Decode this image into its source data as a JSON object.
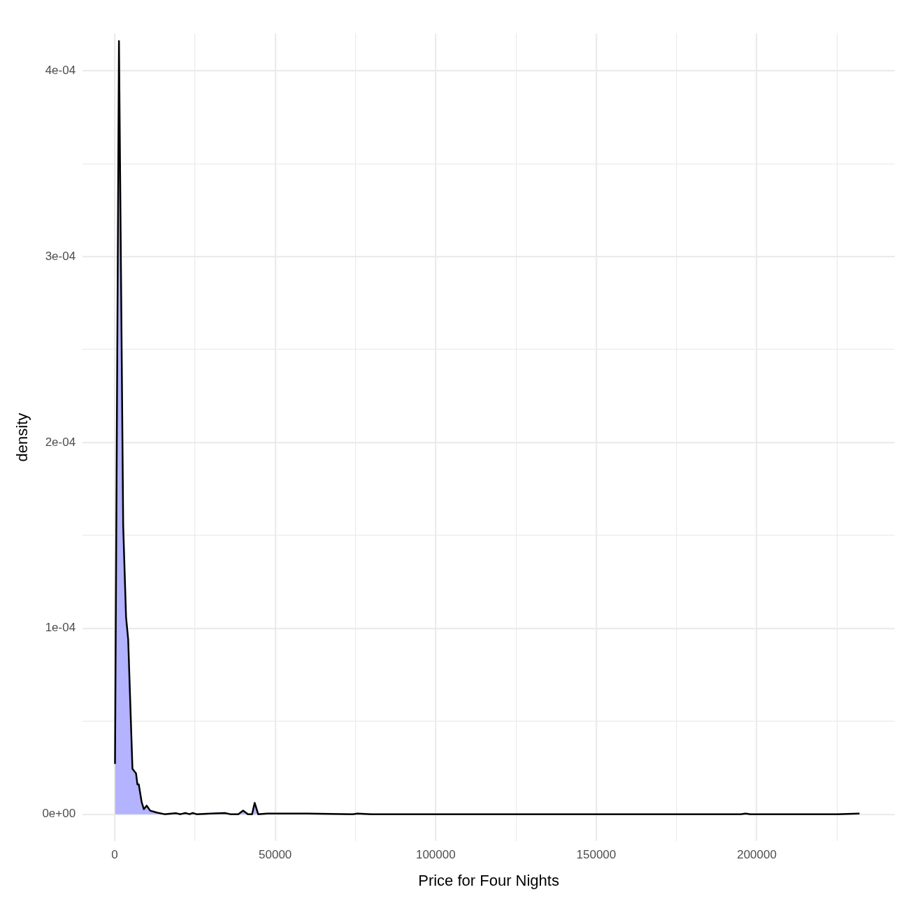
{
  "chart_data": {
    "type": "area",
    "xlabel": "Price for Four Nights",
    "ylabel": "density",
    "x": [
      100,
      1330,
      2650,
      3540,
      4200,
      5530,
      6640,
      7080,
      7500,
      8400,
      9070,
      9960,
      11060,
      13270,
      15500,
      19000,
      20500,
      22000,
      23300,
      24300,
      25500,
      30000,
      34300,
      36000,
      38500,
      40000,
      41500,
      42800,
      43600,
      44700,
      47500,
      50000,
      60000,
      74100,
      75500,
      79900,
      82000,
      120000,
      180000,
      195000,
      196500,
      198000,
      225000,
      232000
    ],
    "series": [
      {
        "color": "#b3b3ff",
        "values": [
          2.7e-05,
          0.000416,
          0.000155,
          0.000106,
          9.4e-05,
          2.44e-05,
          2.2e-05,
          1.6e-05,
          1.6e-05,
          6.5e-06,
          2.7e-06,
          4.6e-06,
          1.9e-06,
          8e-07,
          0,
          5e-07,
          0,
          6e-07,
          0,
          6e-07,
          0,
          3e-07,
          6e-07,
          0,
          0,
          1.9e-06,
          0,
          0,
          6.1e-06,
          0,
          3e-07,
          3e-07,
          3e-07,
          0,
          3e-07,
          0,
          0,
          0,
          0,
          0,
          3e-07,
          0,
          0,
          3e-07
        ]
      }
    ],
    "xlim": [
      -10000,
      243000
    ],
    "ylim": [
      -1.45e-05,
      0.00042
    ],
    "xticks": [
      0,
      {
        "value": 25000,
        "label": null
      },
      50000,
      {
        "value": 75000,
        "label": null
      },
      100000,
      {
        "value": 125000,
        "label": null
      },
      150000,
      {
        "value": 175000,
        "label": null
      },
      200000,
      {
        "value": 225000,
        "label": null
      }
    ],
    "yticks": [
      {
        "value": 0,
        "label": "0e+00"
      },
      {
        "value": 5e-05,
        "label": null
      },
      {
        "value": 0.0001,
        "label": "1e-04"
      },
      {
        "value": 0.00015,
        "label": null
      },
      {
        "value": 0.0002,
        "label": "2e-04"
      },
      {
        "value": 0.00025,
        "label": null
      },
      {
        "value": 0.0003,
        "label": "3e-04"
      },
      {
        "value": 0.00035,
        "label": null
      },
      {
        "value": 0.0004,
        "label": "4e-04"
      }
    ],
    "grid": true
  }
}
